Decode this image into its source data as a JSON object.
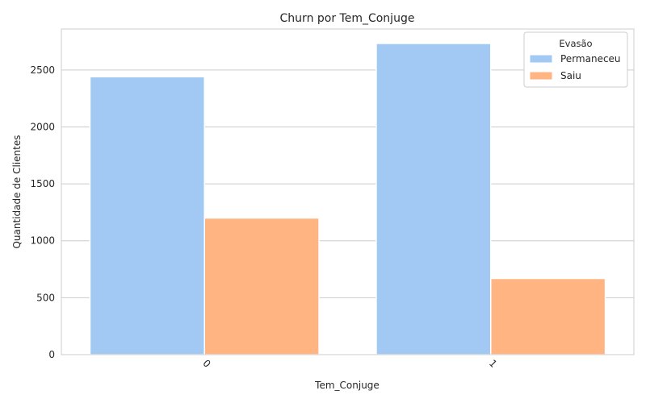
{
  "chart_data": {
    "type": "bar",
    "title": "Churn por Tem_Conjuge",
    "xlabel": "Tem_Conjuge",
    "ylabel": "Quantidade de Clientes",
    "categories": [
      "0",
      "1"
    ],
    "series": [
      {
        "name": "Permaneceu",
        "values": [
          2441,
          2733
        ],
        "color": "#a1c9f4"
      },
      {
        "name": "Saiu",
        "values": [
          1200,
          669
        ],
        "color": "#ffb482"
      }
    ],
    "ylim": [
      0,
      2860
    ],
    "yticks": [
      0,
      500,
      1000,
      1500,
      2000,
      2500
    ],
    "grid": "horizontal",
    "legend": {
      "title": "Evasão",
      "placement": "top-right"
    },
    "xtick_rotation": 45
  }
}
